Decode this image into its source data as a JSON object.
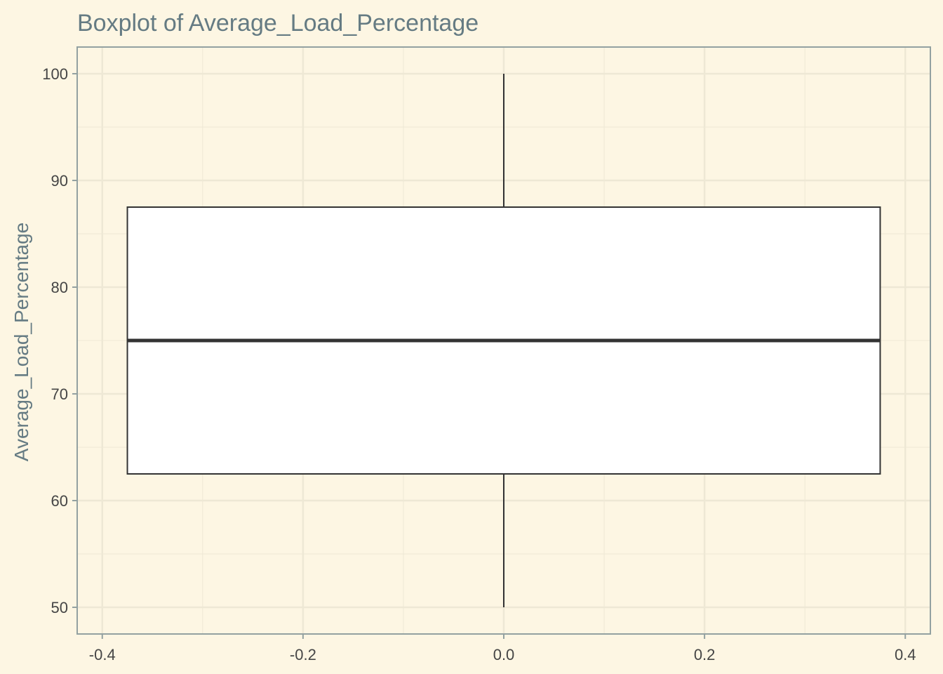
{
  "chart_data": {
    "type": "boxplot",
    "title": "Boxplot of Average_Load_Percentage",
    "xlabel": "",
    "ylabel": "Average_Load_Percentage",
    "xlim": [
      -0.425,
      0.425
    ],
    "ylim": [
      47.5,
      102.5
    ],
    "x_ticks": [
      -0.4,
      -0.2,
      0.0,
      0.2,
      0.4
    ],
    "x_tick_labels": [
      "-0.4",
      "-0.2",
      "0.0",
      "0.2",
      "0.4"
    ],
    "y_ticks": [
      50,
      60,
      70,
      80,
      90,
      100
    ],
    "y_tick_labels": [
      "50",
      "60",
      "70",
      "80",
      "90",
      "100"
    ],
    "grid": true,
    "box": {
      "x_center": 0.0,
      "x_left": -0.375,
      "x_right": 0.375,
      "min": 50,
      "q1": 62.5,
      "median": 75,
      "q3": 87.5,
      "max": 100
    },
    "colors": {
      "background": "#fdf6e3",
      "grid": "#eee8d5",
      "box_fill": "#ffffff",
      "box_stroke": "#333333",
      "axis_line": "#93a1a1"
    }
  }
}
